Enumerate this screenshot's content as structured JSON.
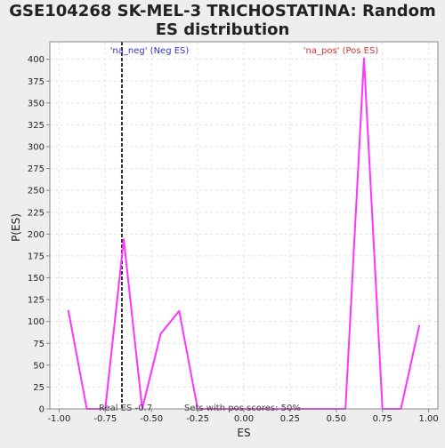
{
  "chart_data": {
    "type": "line",
    "title_lines": [
      "GSE104268 SK-MEL-3 TRICHOSTATINA: Random",
      "ES distribution"
    ],
    "xlabel": "ES",
    "ylabel": "P(ES)",
    "xlim": [
      -1.05,
      1.05
    ],
    "ylim": [
      0,
      420
    ],
    "x_ticks": [
      -1.0,
      -0.75,
      -0.5,
      -0.25,
      0.0,
      0.25,
      0.5,
      0.75,
      1.0
    ],
    "x_tick_labels": [
      "-1.00",
      "-0.75",
      "-0.50",
      "-0.25",
      "0.00",
      "0.25",
      "0.50",
      "0.75",
      "1.00"
    ],
    "y_ticks": [
      0,
      25,
      50,
      75,
      100,
      125,
      150,
      175,
      200,
      225,
      250,
      275,
      300,
      325,
      350,
      375,
      400
    ],
    "y_tick_labels": [
      "0",
      "25",
      "50",
      "75",
      "100",
      "125",
      "150",
      "175",
      "200",
      "225",
      "250",
      "275",
      "300",
      "325",
      "350",
      "375",
      "400"
    ],
    "grid": true,
    "series": [
      {
        "color": "#ff33ff",
        "x": [
          -0.95,
          -0.85,
          -0.75,
          -0.65,
          -0.55,
          -0.45,
          -0.35,
          -0.25,
          -0.15,
          -0.05,
          0.05,
          0.15,
          0.25,
          0.35,
          0.45,
          0.55,
          0.65,
          0.75,
          0.85,
          0.95
        ],
        "y": [
          113,
          0,
          0,
          194,
          0,
          86,
          112,
          0,
          0,
          0,
          0,
          0,
          0,
          0,
          0,
          0,
          401,
          0,
          0,
          96
        ]
      }
    ],
    "reference_line": {
      "x": -0.66,
      "color": "#333333",
      "style": "dashed"
    },
    "annotations": {
      "neg_label": "'na_neg' (Neg ES)",
      "neg_color": "#3333cc",
      "pos_label": "'na_pos' (Pos ES)",
      "pos_color": "#cc3333",
      "real_es": "Real ES -0.7",
      "sets_pos": "Sets with pos scores: 50%"
    },
    "colors": {
      "page_bg": "#eeeeee",
      "plot_bg": "#ffffff",
      "grid": "#e3e3e3",
      "axis": "#888888",
      "text": "#222222",
      "footer_text": "#444444"
    }
  }
}
